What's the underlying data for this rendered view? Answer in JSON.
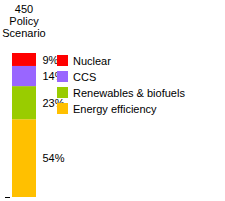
{
  "chart_data": {
    "type": "bar",
    "title": "450 Policy Scenario",
    "categories": [
      null
    ],
    "series": [
      {
        "name": "Energy efficiency",
        "color": "#ffc000",
        "values": [
          54
        ],
        "value_labels": [
          "54%"
        ]
      },
      {
        "name": "Renewables & biofuels",
        "color": "#99cc00",
        "values": [
          23
        ],
        "value_labels": [
          "23%"
        ]
      },
      {
        "name": "CCS",
        "color": "#9966ff",
        "values": [
          14
        ],
        "value_labels": [
          "14%"
        ]
      },
      {
        "name": "Nuclear",
        "color": "#ff0000",
        "values": [
          9
        ],
        "value_labels": [
          "9%"
        ]
      }
    ],
    "stacked": true,
    "data_labels": true,
    "legend": "right",
    "ylim": [
      0,
      100
    ],
    "yticks": [
      0
    ],
    "tick_labels": false
  }
}
